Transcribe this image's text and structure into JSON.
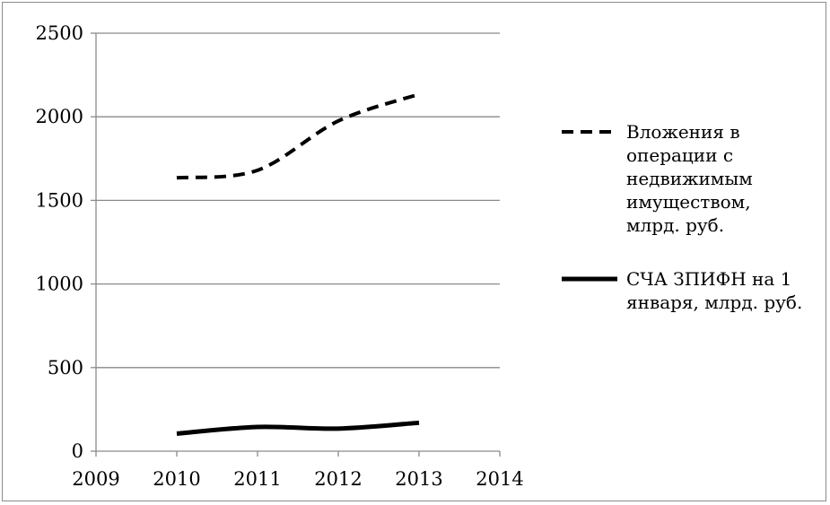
{
  "chart_data": {
    "type": "line",
    "x": [
      2010,
      2011,
      2012,
      2013
    ],
    "xlim": [
      2009,
      2014
    ],
    "ylim": [
      0,
      2500
    ],
    "xticks": [
      2009,
      2010,
      2011,
      2012,
      2013,
      2014
    ],
    "yticks": [
      0,
      500,
      1000,
      1500,
      2000,
      2500
    ],
    "grid": "horizontal",
    "legend_position": "right",
    "title": "",
    "xlabel": "",
    "ylabel": "",
    "series": [
      {
        "name": "Вложения в операции с недвижимым имуществом, млрд. руб.",
        "legend_lines": [
          "Вложения в",
          "операции с",
          "недвижимым",
          "имуществом,",
          "млрд. руб."
        ],
        "values": [
          1635,
          1680,
          1975,
          2135
        ],
        "style": "dashed",
        "color": "#000000"
      },
      {
        "name": "СЧА ЗПИФН на 1 января, млрд. руб.",
        "legend_lines": [
          "СЧА ЗПИФН на 1",
          "января, млрд. руб."
        ],
        "values": [
          105,
          145,
          135,
          170
        ],
        "style": "solid",
        "color": "#000000"
      }
    ]
  }
}
